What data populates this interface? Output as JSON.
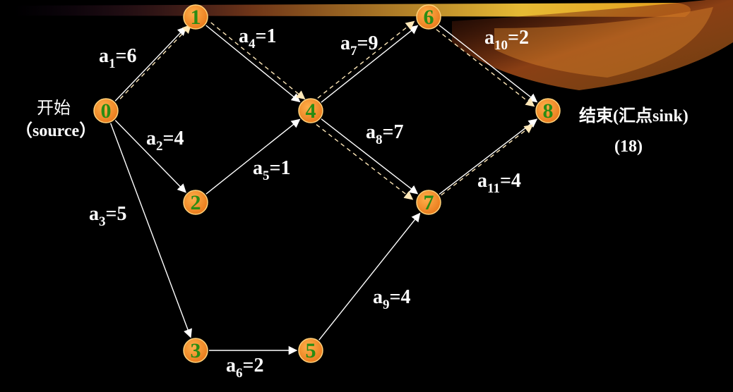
{
  "colors": {
    "background": "#000000",
    "node_fill": "#f08a24",
    "node_stroke": "#ffd27a",
    "node_text": "#2a8c14",
    "edge_solid": "#ffffff",
    "edge_dashed": "#ffe8b8",
    "label": "#ffffff",
    "banner_light": "#ffd24a",
    "banner_dark": "#7a2a14"
  },
  "nodes": [
    {
      "id": "0",
      "label": "0"
    },
    {
      "id": "1",
      "label": "1"
    },
    {
      "id": "2",
      "label": "2"
    },
    {
      "id": "3",
      "label": "3"
    },
    {
      "id": "4",
      "label": "4"
    },
    {
      "id": "5",
      "label": "5"
    },
    {
      "id": "6",
      "label": "6"
    },
    {
      "id": "7",
      "label": "7"
    },
    {
      "id": "8",
      "label": "8"
    }
  ],
  "edges": [
    {
      "name": "a1",
      "from": "0",
      "to": "1",
      "sub": "1",
      "weight": "6",
      "critical": true
    },
    {
      "name": "a2",
      "from": "0",
      "to": "2",
      "sub": "2",
      "weight": "4",
      "critical": false
    },
    {
      "name": "a3",
      "from": "0",
      "to": "3",
      "sub": "3",
      "weight": "5",
      "critical": false
    },
    {
      "name": "a4",
      "from": "1",
      "to": "4",
      "sub": "4",
      "weight": "1",
      "critical": true
    },
    {
      "name": "a5",
      "from": "2",
      "to": "4",
      "sub": "5",
      "weight": "1",
      "critical": false
    },
    {
      "name": "a6",
      "from": "3",
      "to": "5",
      "sub": "6",
      "weight": "2",
      "critical": false
    },
    {
      "name": "a7",
      "from": "4",
      "to": "6",
      "sub": "7",
      "weight": "9",
      "critical": true
    },
    {
      "name": "a8",
      "from": "4",
      "to": "7",
      "sub": "8",
      "weight": "7",
      "critical": true
    },
    {
      "name": "a9",
      "from": "5",
      "to": "7",
      "sub": "9",
      "weight": "4",
      "critical": false
    },
    {
      "name": "a10",
      "from": "6",
      "to": "8",
      "sub": "10",
      "weight": "2",
      "critical": true
    },
    {
      "name": "a11",
      "from": "7",
      "to": "8",
      "sub": "11",
      "weight": "4",
      "critical": true
    }
  ],
  "labels": {
    "start_line1": "开始",
    "start_line2": "（source）",
    "end_line1": "结束(汇点sink)",
    "end_line2": "(18)"
  }
}
